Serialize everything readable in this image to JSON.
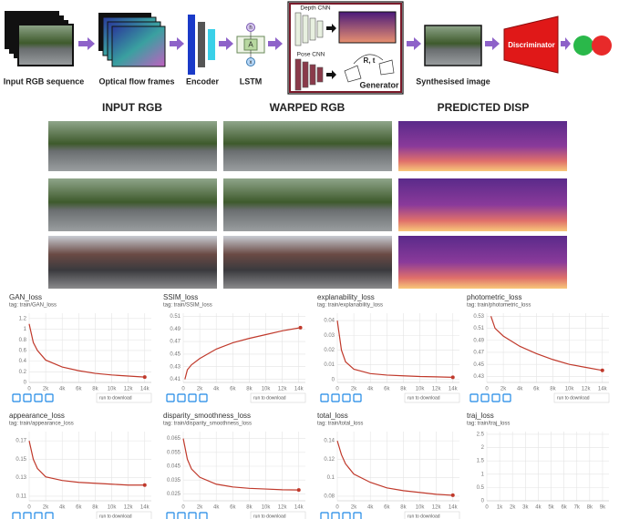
{
  "diagram": {
    "input": "Input RGB sequence",
    "flow": "Optical flow frames",
    "encoder": "Encoder",
    "lstm": "LSTM",
    "lstm_cell": "A",
    "lstm_h": "h",
    "lstm_x": "x",
    "depth_cnn": "Depth CNN",
    "pose_cnn": "Pose CNN",
    "pose": "R, t",
    "generator": "Generator",
    "synth": "Synthesised image",
    "discriminator": "Discriminator"
  },
  "images": {
    "headers": [
      "INPUT RGB",
      "WARPED RGB",
      "PREDICTED DISP"
    ]
  },
  "chart_data": [
    {
      "type": "line",
      "title": "GAN_loss",
      "subtitle": "tag: train/GAN_loss",
      "color": "#c0392b",
      "grid": true,
      "download_label": "run to download",
      "x": [
        0,
        500,
        1000,
        2000,
        4000,
        6000,
        8000,
        10000,
        12000,
        14000
      ],
      "values": [
        1.1,
        0.75,
        0.6,
        0.42,
        0.29,
        0.22,
        0.17,
        0.14,
        0.12,
        0.1
      ],
      "xlim": [
        0,
        14800
      ],
      "xticks": [
        0,
        {
          "value": 2000,
          "label": "2k"
        },
        {
          "value": 4000,
          "label": "4k"
        },
        {
          "value": 6000,
          "label": "6k"
        },
        {
          "value": 8000,
          "label": "8k"
        },
        {
          "value": 10000,
          "label": "10k"
        },
        {
          "value": 12000,
          "label": "12k"
        },
        {
          "value": 14000,
          "label": "14k"
        }
      ],
      "ylim": [
        0,
        1.3
      ],
      "yticks": [
        0,
        0.2,
        0.4,
        0.6,
        0.8,
        1,
        1.2
      ]
    },
    {
      "type": "line",
      "title": "SSIM_loss",
      "subtitle": "tag: train/SSIM_loss",
      "color": "#c0392b",
      "grid": true,
      "download_label": "run to download",
      "x": [
        200,
        500,
        1000,
        2000,
        4000,
        6000,
        8000,
        10000,
        12000,
        14200
      ],
      "values": [
        0.41,
        0.425,
        0.433,
        0.443,
        0.458,
        0.468,
        0.475,
        0.481,
        0.487,
        0.492
      ],
      "xlim": [
        0,
        14800
      ],
      "xticks": [
        0,
        {
          "value": 2000,
          "label": "2k"
        },
        {
          "value": 4000,
          "label": "4k"
        },
        {
          "value": 6000,
          "label": "6k"
        },
        {
          "value": 8000,
          "label": "8k"
        },
        {
          "value": 10000,
          "label": "10k"
        },
        {
          "value": 12000,
          "label": "12k"
        },
        {
          "value": 14000,
          "label": "14k"
        }
      ],
      "ylim": [
        0.405,
        0.515
      ],
      "yticks": [
        0.41,
        0.43,
        0.45,
        0.47,
        0.49,
        0.51
      ]
    },
    {
      "type": "line",
      "title": "explanability_loss",
      "subtitle": "tag: train/explanability_loss",
      "color": "#c0392b",
      "grid": true,
      "download_label": "run to download",
      "x": [
        0,
        500,
        1000,
        2000,
        4000,
        6000,
        8000,
        10000,
        12000,
        14000
      ],
      "values": [
        0.04,
        0.02,
        0.012,
        0.007,
        0.004,
        0.003,
        0.0025,
        0.002,
        0.0018,
        0.0015
      ],
      "xlim": [
        0,
        14800
      ],
      "xticks": [
        0,
        {
          "value": 2000,
          "label": "2k"
        },
        {
          "value": 4000,
          "label": "4k"
        },
        {
          "value": 6000,
          "label": "6k"
        },
        {
          "value": 8000,
          "label": "8k"
        },
        {
          "value": 10000,
          "label": "10k"
        },
        {
          "value": 12000,
          "label": "12k"
        },
        {
          "value": 14000,
          "label": "14k"
        }
      ],
      "ylim": [
        -0.002,
        0.045
      ],
      "yticks": [
        0,
        0.01,
        0.02,
        0.03,
        0.04
      ]
    },
    {
      "type": "line",
      "title": "photometric_loss",
      "subtitle": "tag: train/photometric_loss",
      "color": "#c0392b",
      "grid": true,
      "download_label": "run to download",
      "x": [
        500,
        1000,
        2000,
        4000,
        6000,
        8000,
        10000,
        12000,
        14000
      ],
      "values": [
        0.53,
        0.51,
        0.497,
        0.48,
        0.468,
        0.458,
        0.45,
        0.445,
        0.44
      ],
      "xlim": [
        0,
        14800
      ],
      "xticks": [
        0,
        {
          "value": 2000,
          "label": "2k"
        },
        {
          "value": 4000,
          "label": "4k"
        },
        {
          "value": 6000,
          "label": "6k"
        },
        {
          "value": 8000,
          "label": "8k"
        },
        {
          "value": 10000,
          "label": "10k"
        },
        {
          "value": 12000,
          "label": "12k"
        },
        {
          "value": 14000,
          "label": "14k"
        }
      ],
      "ylim": [
        0.42,
        0.535
      ],
      "yticks": [
        0.43,
        0.45,
        0.47,
        0.49,
        0.51,
        0.53
      ]
    },
    {
      "type": "line",
      "title": "appearance_loss",
      "subtitle": "tag: train/appearance_loss",
      "color": "#c0392b",
      "grid": true,
      "download_label": "run to download",
      "x": [
        0,
        500,
        1000,
        2000,
        4000,
        6000,
        8000,
        10000,
        12000,
        14000
      ],
      "values": [
        0.17,
        0.15,
        0.14,
        0.131,
        0.127,
        0.125,
        0.124,
        0.123,
        0.122,
        0.122
      ],
      "xlim": [
        0,
        14800
      ],
      "xticks": [
        0,
        {
          "value": 2000,
          "label": "2k"
        },
        {
          "value": 4000,
          "label": "4k"
        },
        {
          "value": 6000,
          "label": "6k"
        },
        {
          "value": 8000,
          "label": "8k"
        },
        {
          "value": 10000,
          "label": "10k"
        },
        {
          "value": 12000,
          "label": "12k"
        },
        {
          "value": 14000,
          "label": "14k"
        }
      ],
      "ylim": [
        0.105,
        0.18
      ],
      "yticks": [
        0.11,
        0.13,
        0.15,
        0.17
      ]
    },
    {
      "type": "line",
      "title": "disparity_smoothness_loss",
      "subtitle": "tag: train/disparity_smoothness_loss",
      "color": "#c0392b",
      "grid": true,
      "download_label": "run to download",
      "x": [
        0,
        500,
        1000,
        2000,
        4000,
        6000,
        8000,
        10000,
        12000,
        14000
      ],
      "values": [
        0.065,
        0.05,
        0.043,
        0.037,
        0.032,
        0.03,
        0.029,
        0.0285,
        0.028,
        0.0278
      ],
      "xlim": [
        0,
        14800
      ],
      "xticks": [
        0,
        {
          "value": 2000,
          "label": "2k"
        },
        {
          "value": 4000,
          "label": "4k"
        },
        {
          "value": 6000,
          "label": "6k"
        },
        {
          "value": 8000,
          "label": "8k"
        },
        {
          "value": 10000,
          "label": "10k"
        },
        {
          "value": 12000,
          "label": "12k"
        },
        {
          "value": 14000,
          "label": "14k"
        }
      ],
      "ylim": [
        0.02,
        0.07
      ],
      "yticks": [
        0.025,
        0.035,
        0.045,
        0.055,
        0.065
      ]
    },
    {
      "type": "line",
      "title": "total_loss",
      "subtitle": "tag: train/total_loss",
      "color": "#c0392b",
      "grid": true,
      "download_label": "run to download",
      "x": [
        0,
        500,
        1000,
        2000,
        4000,
        6000,
        8000,
        10000,
        12000,
        14000
      ],
      "values": [
        0.14,
        0.125,
        0.115,
        0.104,
        0.095,
        0.089,
        0.086,
        0.084,
        0.082,
        0.081
      ],
      "xlim": [
        0,
        14800
      ],
      "xticks": [
        0,
        {
          "value": 2000,
          "label": "2k"
        },
        {
          "value": 4000,
          "label": "4k"
        },
        {
          "value": 6000,
          "label": "6k"
        },
        {
          "value": 8000,
          "label": "8k"
        },
        {
          "value": 10000,
          "label": "10k"
        },
        {
          "value": 12000,
          "label": "12k"
        },
        {
          "value": 14000,
          "label": "14k"
        }
      ],
      "ylim": [
        0.075,
        0.15
      ],
      "yticks": [
        0.08,
        0.1,
        0.12,
        0.14
      ]
    },
    {
      "type": "line",
      "title": "traj_loss",
      "subtitle": "tag: train/traj_loss",
      "color": "#c0392b",
      "grid": true,
      "x": [],
      "values": [],
      "xlim": [
        0,
        9500
      ],
      "xticks": [
        0,
        {
          "value": 1000,
          "label": "1k"
        },
        {
          "value": 2000,
          "label": "2k"
        },
        {
          "value": 3000,
          "label": "3k"
        },
        {
          "value": 4000,
          "label": "4k"
        },
        {
          "value": 5000,
          "label": "5k"
        },
        {
          "value": 6000,
          "label": "6k"
        },
        {
          "value": 7000,
          "label": "7k"
        },
        {
          "value": 8000,
          "label": "8k"
        },
        {
          "value": 9000,
          "label": "9k"
        }
      ],
      "ylim": [
        0,
        2.6
      ],
      "yticks": [
        0,
        0.5,
        1,
        1.5,
        2,
        2.5
      ]
    }
  ]
}
